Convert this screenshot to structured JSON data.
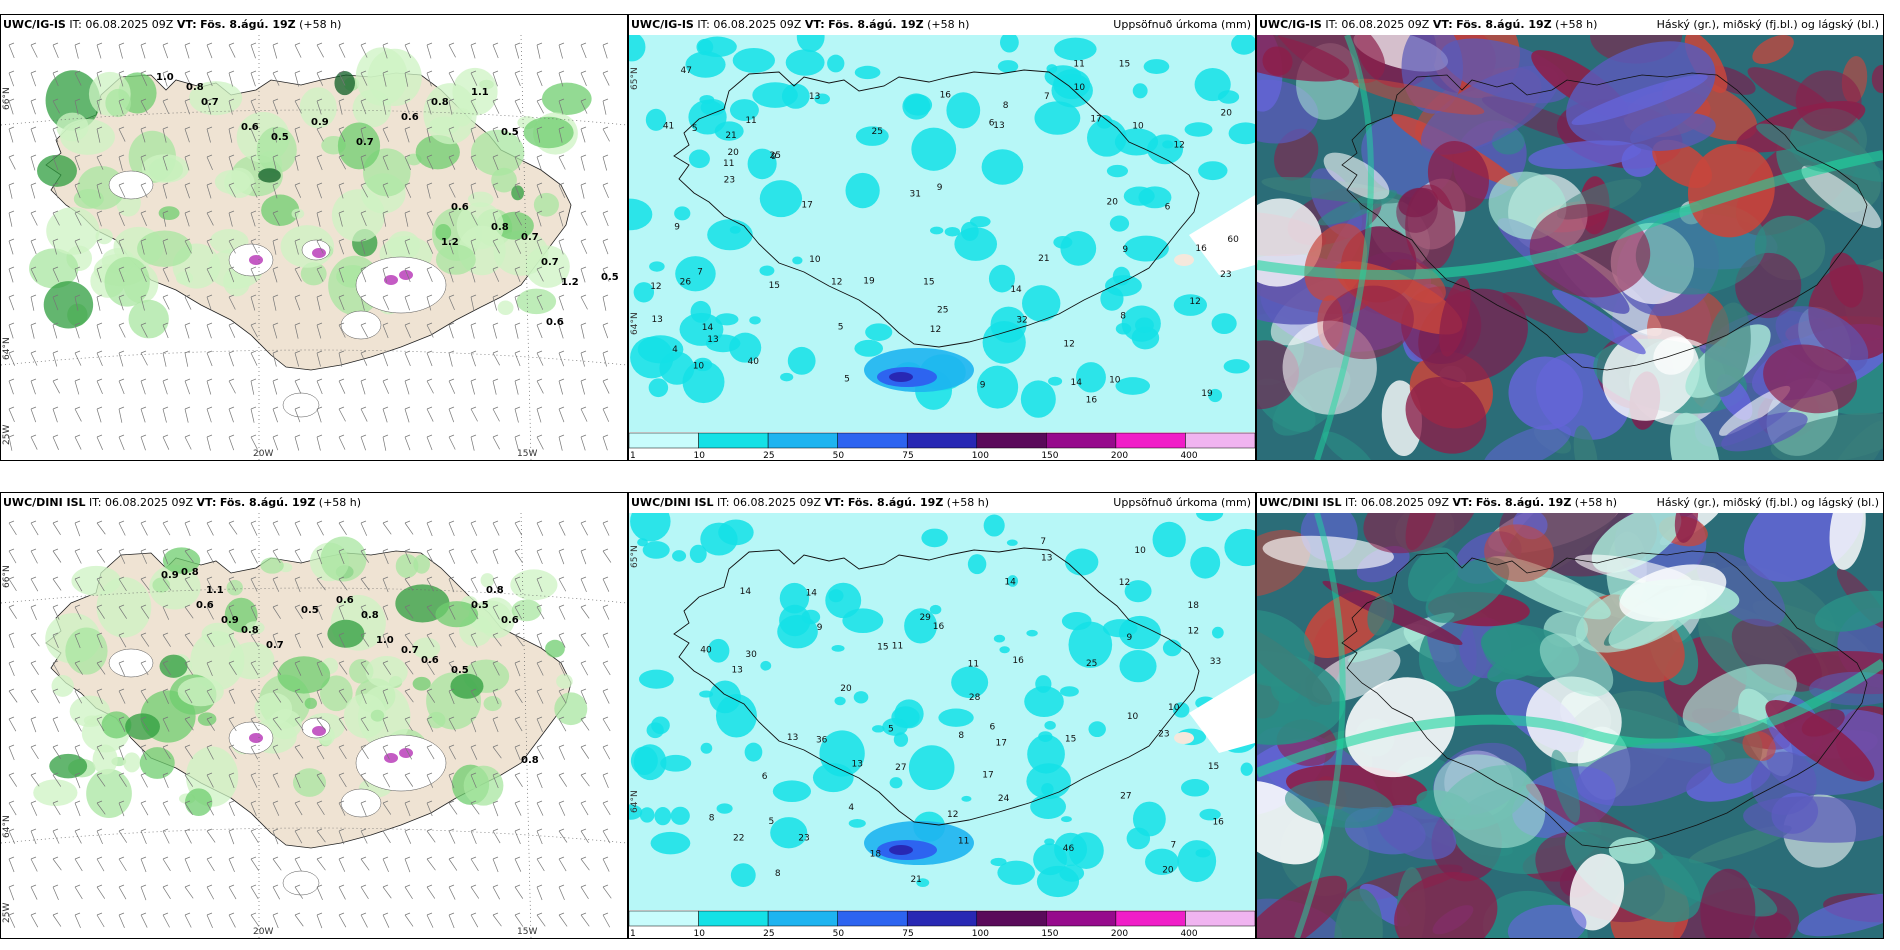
{
  "rows": [
    {
      "model": "UWC/IG-IS",
      "it_label": "IT:",
      "it_value": "06.08.2025 09Z",
      "vt_label": "VT:",
      "vt_value": "Fös. 8.ágú. 19Z",
      "lead": "(+58 h)"
    },
    {
      "model": "UWC/DINI ISL",
      "it_label": "IT:",
      "it_value": "06.08.2025 09Z",
      "vt_label": "VT:",
      "vt_value": "Fös. 8.ágú. 19Z",
      "lead": "(+58 h)"
    }
  ],
  "panel_titles": {
    "precip": "Uppsöfnuð úrkoma (mm)",
    "cloud": "Háský (gr.), miðský (fj.bl.) og lágský (bl.)"
  },
  "axis_labels": {
    "lat66": "66°N",
    "lat64": "64°N",
    "lon25": "25W",
    "lon20": "20W",
    "lon15": "15W",
    "lat65": "65°N"
  },
  "precip_scale": {
    "ticks": [
      "1",
      "10",
      "25",
      "50",
      "75",
      "100",
      "150",
      "200",
      "400"
    ],
    "colors": [
      "#c8fcfc",
      "#14e1e6",
      "#1eb4f0",
      "#2d64f0",
      "#2828b4",
      "#5a0a5a",
      "#960a8c",
      "#f01ec8",
      "#f0b4f0"
    ]
  },
  "wind_panel": {
    "row1_values": [
      "1.0",
      "0.8",
      "0.7",
      "0.6",
      "0.5",
      "0.9",
      "0.7",
      "0.6",
      "0.8",
      "1.1",
      "0.5",
      "0.6",
      "0.8",
      "0.7",
      "1.2",
      "0.5",
      "0.6",
      "0.7",
      "1.2"
    ],
    "row2_values": [
      "0.9",
      "0.8",
      "1.1",
      "0.6",
      "0.9",
      "0.8",
      "0.7",
      "0.5",
      "0.6",
      "0.8",
      "1.0",
      "0.7",
      "0.6",
      "0.5",
      "0.8",
      "0.6",
      "0.5",
      "0.8"
    ]
  },
  "precip_panel": {
    "row1_values": [
      "9",
      "13",
      "14",
      "16",
      "12",
      "23",
      "25",
      "15",
      "20",
      "9",
      "12",
      "15",
      "10",
      "13",
      "19",
      "17",
      "11",
      "8",
      "26",
      "21",
      "20",
      "12",
      "32",
      "21",
      "16",
      "9",
      "16",
      "15",
      "13",
      "12",
      "11",
      "7",
      "6",
      "4",
      "5",
      "8",
      "10",
      "5",
      "9",
      "40",
      "31",
      "41",
      "47",
      "60",
      "25",
      "17",
      "12",
      "14",
      "23",
      "10",
      "10",
      "20",
      "6",
      "5",
      "11",
      "25",
      "19",
      "13",
      "12",
      "9",
      "10",
      "14",
      "7"
    ],
    "row2_values": [
      "13",
      "11",
      "12",
      "20",
      "16",
      "21",
      "33",
      "25",
      "14",
      "18",
      "7",
      "15",
      "8",
      "6",
      "5",
      "10",
      "9",
      "8",
      "27",
      "15",
      "20",
      "13",
      "24",
      "23",
      "17",
      "12",
      "6",
      "10",
      "13",
      "14",
      "9",
      "11",
      "29",
      "36",
      "46",
      "40",
      "30",
      "28",
      "27",
      "23",
      "18",
      "16",
      "10",
      "8",
      "7",
      "5",
      "4",
      "12",
      "13",
      "22",
      "15",
      "11",
      "14",
      "16",
      "17"
    ]
  }
}
